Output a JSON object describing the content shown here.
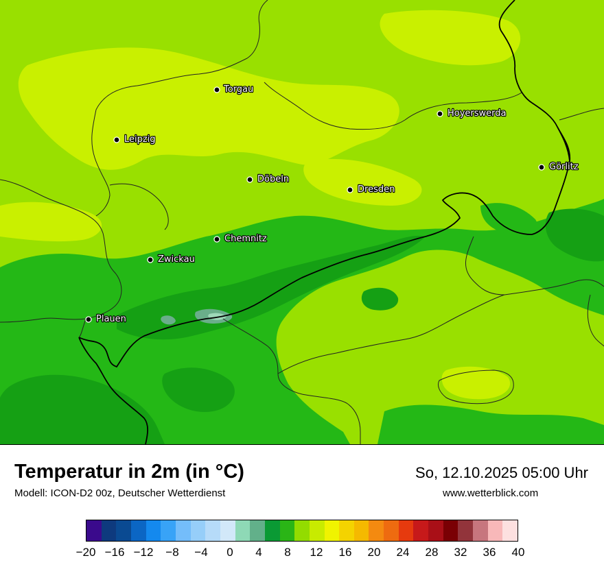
{
  "map": {
    "cities": [
      {
        "name": "Torgau"
      },
      {
        "name": "Leipzig"
      },
      {
        "name": "Hoyerswerda"
      },
      {
        "name": "Görlitz"
      },
      {
        "name": "Döbeln"
      },
      {
        "name": "Dresden"
      },
      {
        "name": "Chemnitz"
      },
      {
        "name": "Zwickau"
      },
      {
        "name": "Plauen"
      }
    ],
    "zone_colors": {
      "t8_10": "#15a014",
      "t10_12": "#24b816",
      "t12_14": "#99e000",
      "t14_16": "#c9f000",
      "t4_6": "#6aae8a",
      "t2_4": "#9ed8b8"
    }
  },
  "header": {
    "title": "Temperatur in 2m (in °C)",
    "model": "Modell: ICON-D2 00z, Deutscher Wetterdienst",
    "datetime": "So, 12.10.2025 05:00 Uhr",
    "website": "www.wetterblick.com"
  },
  "colorbar": {
    "colors": [
      "#3a0a8c",
      "#0e3a7e",
      "#0a4a92",
      "#0b66c4",
      "#1489ee",
      "#38a3f7",
      "#74bdfa",
      "#96cef9",
      "#b6dbf9",
      "#d2e8f9",
      "#8ed9b6",
      "#62b08a",
      "#0a9a34",
      "#2ab516",
      "#93dc00",
      "#c8eb00",
      "#f0f300",
      "#f4d300",
      "#f5b900",
      "#f48a10",
      "#ee6b10",
      "#e63a0e",
      "#c7191a",
      "#a90f17",
      "#7a0004",
      "#92343b",
      "#c7767e",
      "#f8b8b9",
      "#fde0e0"
    ],
    "labels": [
      "−20",
      "−16",
      "−12",
      "−8",
      "−4",
      "0",
      "4",
      "8",
      "12",
      "16",
      "20",
      "24",
      "28",
      "32",
      "36",
      "40"
    ],
    "min": -20,
    "max": 40,
    "unit": "°C"
  }
}
